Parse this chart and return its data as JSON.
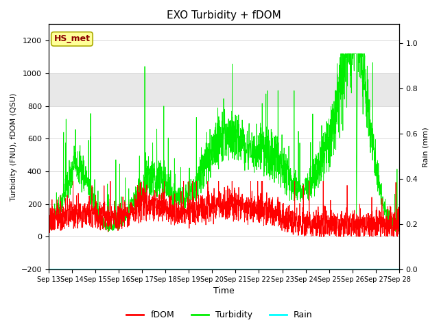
{
  "title": "EXO Turbidity + fDOM",
  "ylabel_left": "Turbidity (FNU), fDOM (QSU)",
  "ylabel_right": "Rain (mm)",
  "xlabel": "Time",
  "ylim_left": [
    -200,
    1300
  ],
  "ylim_right": [
    0.0,
    1.0833
  ],
  "yticks_left": [
    -200,
    0,
    200,
    400,
    600,
    800,
    1000,
    1200
  ],
  "yticks_right": [
    0.0,
    0.2,
    0.4,
    0.6,
    0.8,
    1.0
  ],
  "xtick_labels": [
    "Sep 13",
    "Sep 14",
    "Sep 15",
    "Sep 16",
    "Sep 17",
    "Sep 18",
    "Sep 19",
    "Sep 20",
    "Sep 21",
    "Sep 22",
    "Sep 23",
    "Sep 24",
    "Sep 25",
    "Sep 26",
    "Sep 27",
    "Sep 28"
  ],
  "shaded_region": [
    800,
    1000
  ],
  "fdom_color": "#FF0000",
  "turbidity_color": "#00EE00",
  "rain_color": "#00FFFF",
  "background_color": "#ffffff",
  "legend_label_fdom": "fDOM",
  "legend_label_turbidity": "Turbidity",
  "legend_label_rain": "Rain",
  "annotation_text": "HS_met",
  "annotation_color": "#8B0000",
  "annotation_bg": "#FFFF99",
  "annotation_border": "#AAAA00"
}
